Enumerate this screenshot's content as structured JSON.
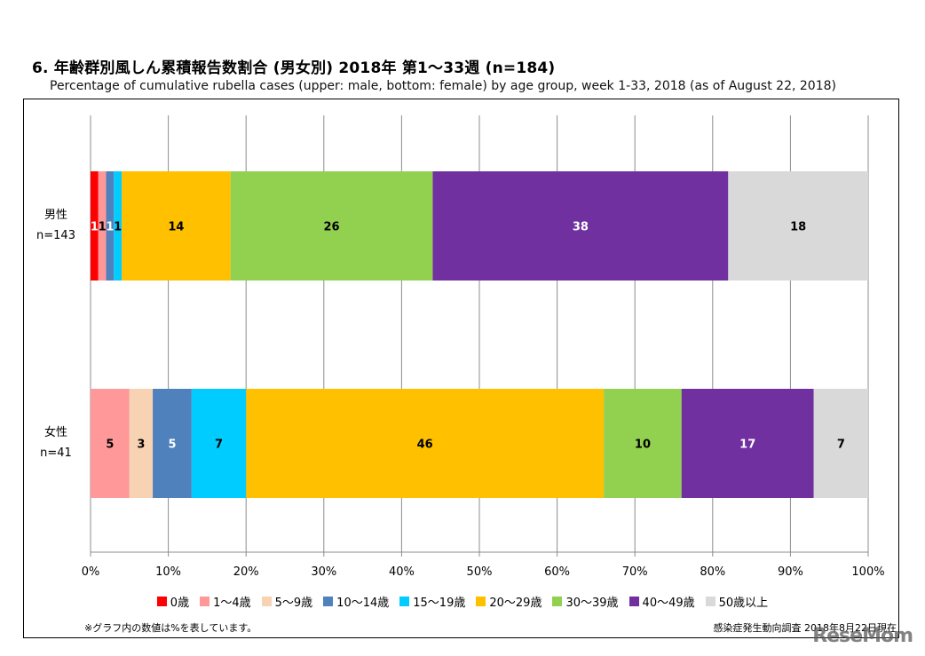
{
  "chart_data": {
    "type": "bar",
    "orientation": "horizontal",
    "stacked": "percent",
    "title": "6. 年齢群別風しん累積報告数割合 (男女別)  2018年 第1〜33週 (n=184)",
    "subtitle": "Percentage of cumulative rubella cases (upper: male, bottom: female) by age group, week 1-33, 2018 (as of August 22, 2018)",
    "categories": [
      {
        "label": "男性",
        "n_label": "n=143"
      },
      {
        "label": "女性",
        "n_label": "n=41"
      }
    ],
    "series": [
      {
        "name": "0歳",
        "color": "#ff0000",
        "label_color": "#ffffff",
        "values": [
          1,
          0
        ]
      },
      {
        "name": "1〜4歳",
        "color": "#ff9999",
        "label_color": "#000000",
        "values": [
          1,
          5
        ]
      },
      {
        "name": "5〜9歳",
        "color": "#f8d3b3",
        "label_color": "#000000",
        "values": [
          0,
          3
        ]
      },
      {
        "name": "10〜14歳",
        "color": "#4f81bd",
        "label_color": "#ffffff",
        "values": [
          1,
          5
        ]
      },
      {
        "name": "15〜19歳",
        "color": "#00ccff",
        "label_color": "#000000",
        "values": [
          1,
          7
        ]
      },
      {
        "name": "20〜29歳",
        "color": "#ffc000",
        "label_color": "#000000",
        "values": [
          14,
          46
        ]
      },
      {
        "name": "30〜39歳",
        "color": "#92d050",
        "label_color": "#000000",
        "values": [
          26,
          10
        ]
      },
      {
        "name": "40〜49歳",
        "color": "#7030a0",
        "label_color": "#ffffff",
        "values": [
          38,
          17
        ]
      },
      {
        "name": "50歳以上",
        "color": "#d9d9d9",
        "label_color": "#000000",
        "values": [
          18,
          7
        ]
      }
    ],
    "xlim": [
      0,
      100
    ],
    "xticks": [
      "0%",
      "10%",
      "20%",
      "30%",
      "40%",
      "50%",
      "60%",
      "70%",
      "80%",
      "90%",
      "100%"
    ],
    "grid": true,
    "legend_position": "bottom",
    "xlabel": "",
    "ylabel": ""
  },
  "footer": {
    "note": "※グラフ内の数値は%を表しています。",
    "source": "感染症発生動向調査 2018年8月22日現在",
    "watermark": "ReseMom"
  }
}
